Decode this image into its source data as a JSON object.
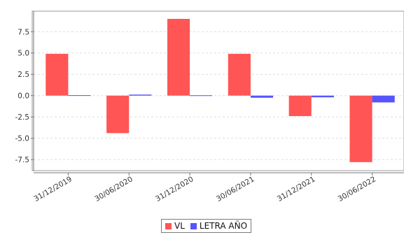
{
  "chart_data": {
    "type": "bar",
    "title": "",
    "xlabel": "",
    "ylabel": "",
    "categories": [
      "31/12/2019",
      "30/06/2020",
      "31/12/2020",
      "30/06/2021",
      "31/12/2021",
      "30/06/2022"
    ],
    "series": [
      {
        "name": "VL",
        "color": "#ff5555",
        "values": [
          4.9,
          -4.4,
          9.0,
          4.9,
          -2.4,
          -7.8
        ]
      },
      {
        "name": "LETRA AÑO",
        "color": "#5555ff",
        "values": [
          0.05,
          0.12,
          0.04,
          -0.25,
          -0.2,
          -0.8
        ]
      }
    ],
    "ylim": [
      -8.8,
      9.9
    ],
    "yticks": [
      -7.5,
      -5.0,
      -2.5,
      0.0,
      2.5,
      5.0,
      7.5
    ],
    "ytick_labels": [
      "-7.5",
      "-5.0",
      "-2.5",
      "0.0",
      "2.5",
      "5.0",
      "7.5"
    ],
    "grid": true,
    "legend": "bottom-center"
  }
}
